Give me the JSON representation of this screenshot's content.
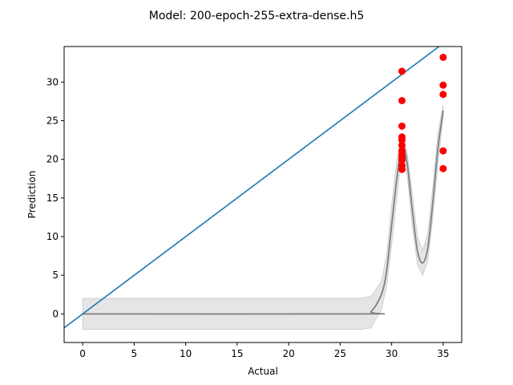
{
  "chart_data": {
    "type": "scatter",
    "title": "Model: 200-epoch-255-extra-dense.h5",
    "xlabel": "Actual",
    "ylabel": "Prediction",
    "xlim": [
      -1.8,
      36.8
    ],
    "ylim": [
      -3.7,
      34.6
    ],
    "xticks": [
      0,
      5,
      10,
      15,
      20,
      25,
      30,
      35
    ],
    "yticks": [
      0,
      5,
      10,
      15,
      20,
      25,
      30
    ],
    "grid": false,
    "colors": {
      "points": "#ff0000",
      "identity_line": "#1f77b4",
      "fit_line": "#808080",
      "band": "#d3d3d3"
    },
    "points": [
      {
        "x": 31,
        "y": 31.4
      },
      {
        "x": 31,
        "y": 27.6
      },
      {
        "x": 31,
        "y": 24.3
      },
      {
        "x": 31,
        "y": 22.9
      },
      {
        "x": 31,
        "y": 22.5
      },
      {
        "x": 31,
        "y": 21.8
      },
      {
        "x": 31,
        "y": 21.1
      },
      {
        "x": 31,
        "y": 20.6
      },
      {
        "x": 31,
        "y": 20.2
      },
      {
        "x": 31,
        "y": 19.9
      },
      {
        "x": 31,
        "y": 19.2
      },
      {
        "x": 31,
        "y": 18.7
      },
      {
        "x": 35,
        "y": 33.2
      },
      {
        "x": 35,
        "y": 29.6
      },
      {
        "x": 35,
        "y": 28.4
      },
      {
        "x": 35,
        "y": 21.1
      },
      {
        "x": 35,
        "y": 18.8
      }
    ],
    "identity_line": {
      "x": [
        -1.8,
        36.8
      ],
      "y": [
        -1.8,
        36.8
      ]
    },
    "fit_curve": {
      "x": [
        0,
        27,
        28,
        29,
        29.5,
        30,
        30.5,
        31,
        31.5,
        32,
        32.5,
        33,
        33.5,
        34,
        34.5,
        35
      ],
      "y": [
        0,
        0,
        0.3,
        2.5,
        5.5,
        11.5,
        17.5,
        22.0,
        19.5,
        13.5,
        8.2,
        6.6,
        8.5,
        14.5,
        21.5,
        26.3
      ],
      "upper": [
        2.0,
        2.0,
        2.3,
        4.2,
        7.5,
        14.0,
        20.0,
        23.0,
        21.0,
        15.5,
        10.0,
        8.2,
        10.3,
        16.5,
        23.5,
        27.0
      ],
      "lower": [
        -2.0,
        -2.0,
        -1.8,
        0.5,
        3.5,
        9.0,
        15.0,
        21.0,
        18.0,
        11.5,
        6.4,
        5.0,
        6.8,
        12.5,
        19.5,
        25.5
      ]
    }
  }
}
